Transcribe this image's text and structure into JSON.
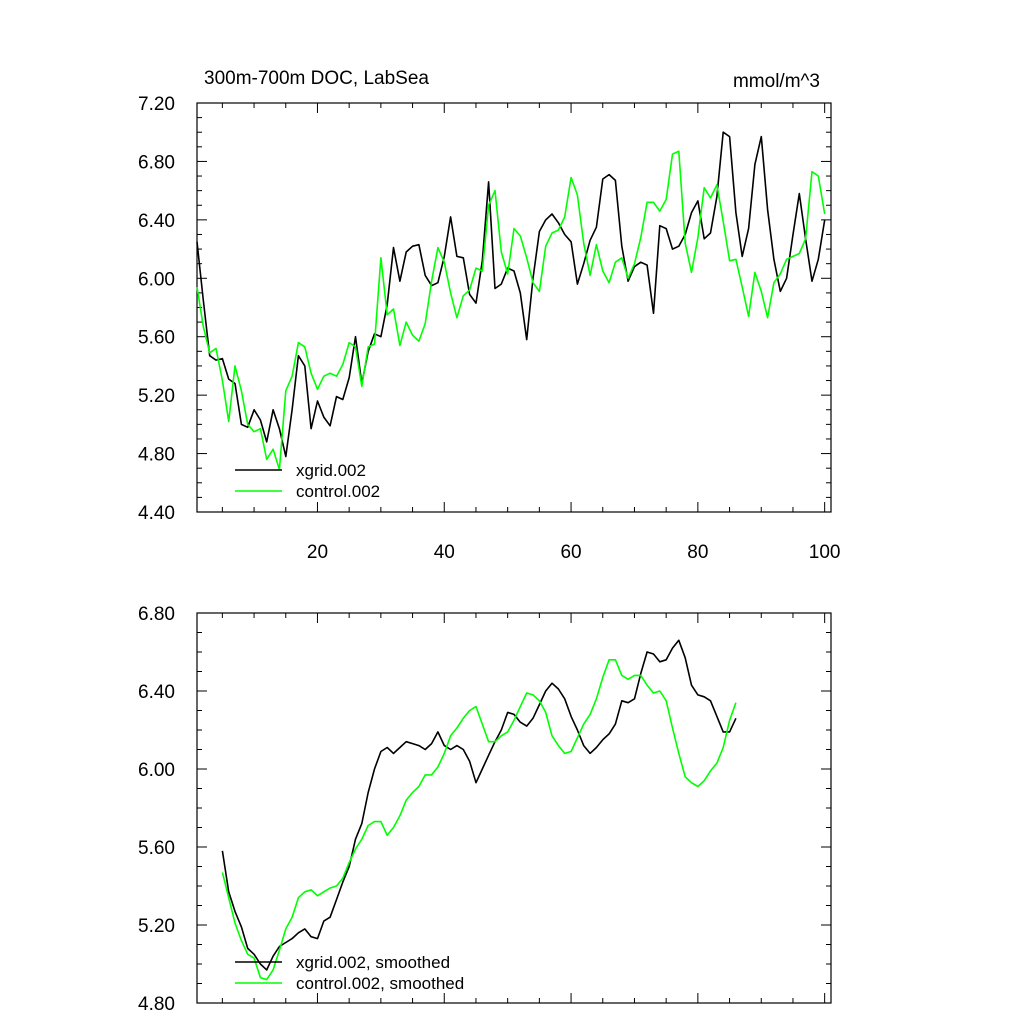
{
  "chart_data": [
    {
      "type": "line",
      "title": "300m-700m DOC, LabSea",
      "units_label": "mmol/m^3",
      "xlabel": "",
      "ylabel": "",
      "xlim": [
        1,
        101
      ],
      "ylim": [
        4.4,
        7.2
      ],
      "x_ticks": [
        20,
        40,
        60,
        80,
        100
      ],
      "x_tick_labels": [
        "20",
        "40",
        "60",
        "80",
        "100"
      ],
      "y_ticks": [
        4.4,
        4.8,
        5.2,
        5.6,
        6.0,
        6.4,
        6.8,
        7.2
      ],
      "y_tick_labels": [
        "4.40",
        "4.80",
        "5.20",
        "5.60",
        "6.00",
        "6.40",
        "6.80",
        "7.20"
      ],
      "grid": false,
      "legend_position": "bottom-left",
      "x_start": 1,
      "series": [
        {
          "name": "xgrid.002",
          "color": "#000000",
          "values": [
            6.25,
            5.85,
            5.47,
            5.44,
            5.45,
            5.31,
            5.28,
            5.0,
            4.98,
            5.1,
            5.03,
            4.88,
            5.1,
            4.97,
            4.78,
            5.1,
            5.47,
            5.4,
            4.97,
            5.16,
            5.05,
            4.99,
            5.19,
            5.17,
            5.32,
            5.6,
            5.28,
            5.5,
            5.62,
            5.6,
            5.82,
            6.21,
            5.98,
            6.18,
            6.22,
            6.23,
            6.02,
            5.95,
            5.97,
            6.15,
            6.42,
            6.15,
            6.14,
            5.89,
            5.83,
            6.12,
            6.66,
            5.93,
            5.96,
            6.07,
            6.05,
            5.9,
            5.58,
            6.0,
            6.32,
            6.4,
            6.44,
            6.38,
            6.3,
            6.25,
            5.96,
            6.1,
            6.26,
            6.35,
            6.68,
            6.71,
            6.67,
            6.22,
            5.98,
            6.08,
            6.11,
            6.09,
            5.76,
            6.36,
            6.34,
            6.2,
            6.22,
            6.3,
            6.45,
            6.53,
            6.27,
            6.31,
            6.56,
            7.0,
            6.97,
            6.45,
            6.15,
            6.34,
            6.78,
            6.97,
            6.47,
            6.13,
            5.91,
            6.0,
            6.3,
            6.58,
            6.27,
            5.98,
            6.13,
            6.4
          ]
        },
        {
          "name": "control.002",
          "color": "#00ff00",
          "values": [
            5.94,
            5.67,
            5.49,
            5.52,
            5.3,
            5.02,
            5.4,
            5.23,
            5.0,
            4.95,
            4.97,
            4.76,
            4.83,
            4.69,
            5.23,
            5.33,
            5.56,
            5.53,
            5.35,
            5.24,
            5.33,
            5.35,
            5.33,
            5.41,
            5.56,
            5.53,
            5.26,
            5.53,
            5.55,
            6.14,
            5.75,
            5.79,
            5.54,
            5.7,
            5.61,
            5.57,
            5.69,
            5.98,
            6.21,
            6.11,
            5.9,
            5.73,
            5.88,
            5.92,
            6.07,
            6.05,
            6.5,
            6.6,
            6.18,
            6.03,
            6.34,
            6.29,
            6.14,
            5.97,
            5.91,
            6.22,
            6.31,
            6.33,
            6.42,
            6.69,
            6.57,
            6.24,
            6.02,
            6.23,
            6.05,
            5.97,
            6.11,
            6.14,
            6.0,
            6.1,
            6.28,
            6.52,
            6.52,
            6.46,
            6.54,
            6.85,
            6.87,
            6.24,
            6.04,
            6.28,
            6.62,
            6.55,
            6.64,
            6.39,
            6.12,
            6.13,
            5.94,
            5.74,
            6.04,
            5.91,
            5.73,
            5.97,
            6.03,
            6.13,
            6.15,
            6.17,
            6.27,
            6.73,
            6.7,
            6.44
          ]
        }
      ]
    },
    {
      "type": "line",
      "title": "",
      "xlabel": "",
      "ylabel": "",
      "xlim": [
        1,
        101
      ],
      "ylim": [
        4.8,
        6.8
      ],
      "x_ticks": [
        20,
        40,
        60,
        80,
        100
      ],
      "x_tick_labels": [],
      "y_ticks": [
        4.8,
        5.2,
        5.6,
        6.0,
        6.4,
        6.8
      ],
      "y_tick_labels": [
        "4.80",
        "5.20",
        "5.60",
        "6.00",
        "6.40",
        "6.80"
      ],
      "grid": false,
      "legend_position": "bottom-left",
      "x_start": 5,
      "series": [
        {
          "name": "xgrid.002, smoothed",
          "color": "#000000",
          "values": [
            5.58,
            5.37,
            5.27,
            5.19,
            5.08,
            5.05,
            5.0,
            4.97,
            5.04,
            5.09,
            5.11,
            5.13,
            5.16,
            5.18,
            5.14,
            5.13,
            5.22,
            5.24,
            5.33,
            5.42,
            5.5,
            5.64,
            5.72,
            5.88,
            6.0,
            6.09,
            6.11,
            6.08,
            6.11,
            6.14,
            6.13,
            6.12,
            6.1,
            6.13,
            6.19,
            6.12,
            6.1,
            6.12,
            6.1,
            6.04,
            5.93,
            6.0,
            6.07,
            6.14,
            6.2,
            6.29,
            6.28,
            6.24,
            6.22,
            6.26,
            6.33,
            6.4,
            6.44,
            6.41,
            6.36,
            6.27,
            6.2,
            6.12,
            6.08,
            6.11,
            6.15,
            6.18,
            6.23,
            6.35,
            6.34,
            6.36,
            6.49,
            6.6,
            6.59,
            6.55,
            6.56,
            6.62,
            6.66,
            6.57,
            6.43,
            6.38,
            6.37,
            6.35,
            6.27,
            6.19,
            6.19,
            6.26
          ]
        },
        {
          "name": "control.002, smoothed",
          "color": "#00ff00",
          "values": [
            5.47,
            5.34,
            5.21,
            5.12,
            5.05,
            5.03,
            4.93,
            4.92,
            4.97,
            5.07,
            5.18,
            5.24,
            5.34,
            5.37,
            5.38,
            5.35,
            5.37,
            5.39,
            5.4,
            5.44,
            5.52,
            5.59,
            5.64,
            5.71,
            5.73,
            5.73,
            5.66,
            5.7,
            5.76,
            5.84,
            5.88,
            5.91,
            5.97,
            5.97,
            6.01,
            6.08,
            6.17,
            6.21,
            6.26,
            6.3,
            6.32,
            6.23,
            6.14,
            6.14,
            6.17,
            6.19,
            6.25,
            6.32,
            6.39,
            6.38,
            6.35,
            6.29,
            6.17,
            6.12,
            6.08,
            6.09,
            6.16,
            6.23,
            6.28,
            6.36,
            6.47,
            6.56,
            6.56,
            6.48,
            6.46,
            6.48,
            6.48,
            6.43,
            6.39,
            6.4,
            6.35,
            6.21,
            6.08,
            5.96,
            5.93,
            5.91,
            5.94,
            5.99,
            6.03,
            6.11,
            6.25,
            6.34
          ]
        }
      ]
    }
  ]
}
